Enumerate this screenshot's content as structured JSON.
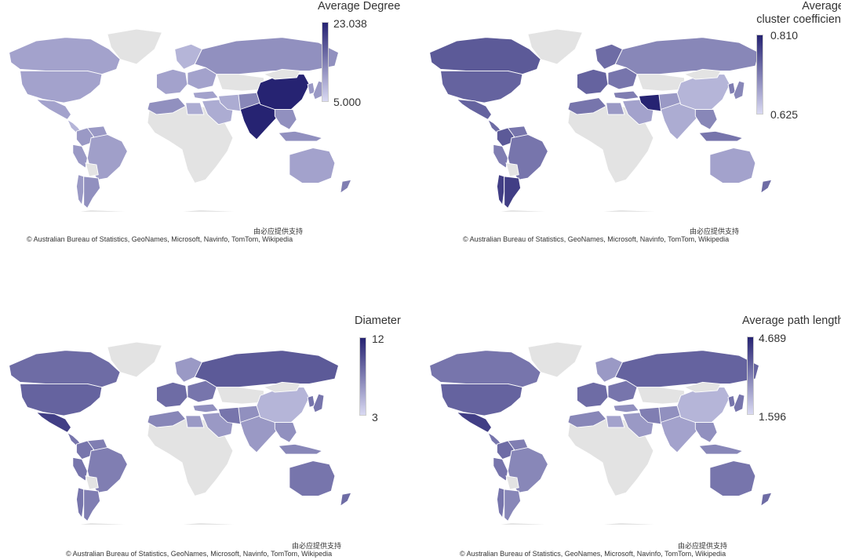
{
  "colors": {
    "low": "#d9d9f2",
    "high": "#262372",
    "nodata": "#e3e3e3",
    "border": "#ffffff"
  },
  "panels": [
    {
      "title": "Average Degree",
      "max_label": "23.038",
      "min_label": "5.000",
      "credit_cn": "由必应提供支持",
      "credit": "© Australian Bureau of Statistics, GeoNames, Microsoft, Navinfo, TomTom, Wikipedia",
      "levels": {
        "canada": 0.3,
        "usa": 0.3,
        "mexico": 0.3,
        "central_america": 0.2,
        "colombia": 0.35,
        "venezuela": 0.35,
        "peru": 0.35,
        "brazil": 0.32,
        "bolivia": 0.0,
        "chile": 0.35,
        "argentina": 0.4,
        "western_europe": 0.3,
        "scandinavia": 0.2,
        "eastern_europe": 0.3,
        "russia": 0.4,
        "north_africa": 0.4,
        "egypt": 0.25,
        "turkey": 0.3,
        "middle_east": 0.25,
        "iran": 0.25,
        "pakistan": 0.45,
        "india": 1.0,
        "china": 1.0,
        "japan": 0.35,
        "korea": 0.35,
        "southeast_asia": 0.4,
        "indonesia": 0.4,
        "australia": 0.3,
        "new_zealand": 0.5
      }
    },
    {
      "title": "Average\ncluster coefficient",
      "max_label": "0.810",
      "min_label": "0.625",
      "credit_cn": "由必应提供支持",
      "credit": "© Australian Bureau of Statistics, GeoNames, Microsoft, Navinfo, TomTom, Wikipedia",
      "levels": {
        "canada": 0.7,
        "usa": 0.65,
        "mexico": 0.65,
        "central_america": 0.6,
        "colombia": 0.7,
        "venezuela": 0.55,
        "peru": 0.5,
        "brazil": 0.55,
        "bolivia": 0.0,
        "chile": 0.85,
        "argentina": 0.85,
        "western_europe": 0.65,
        "scandinavia": 0.6,
        "eastern_europe": 0.55,
        "russia": 0.45,
        "north_africa": 0.55,
        "egypt": 0.35,
        "turkey": 0.5,
        "middle_east": 0.3,
        "iran": 1.0,
        "pakistan": 0.35,
        "india": 0.25,
        "china": 0.2,
        "japan": 0.45,
        "korea": 0.5,
        "southeast_asia": 0.45,
        "indonesia": 0.55,
        "australia": 0.3,
        "new_zealand": 0.6
      }
    },
    {
      "title": "Diameter",
      "max_label": "12",
      "min_label": "3",
      "credit_cn": "由必应提供支持",
      "credit": "© Australian Bureau of Statistics, GeoNames, Microsoft, Navinfo, TomTom, Wikipedia",
      "levels": {
        "canada": 0.6,
        "usa": 0.65,
        "mexico": 0.85,
        "central_america": 0.55,
        "colombia": 0.55,
        "venezuela": 0.5,
        "peru": 0.55,
        "brazil": 0.5,
        "bolivia": 0.0,
        "chile": 0.55,
        "argentina": 0.5,
        "western_europe": 0.6,
        "scandinavia": 0.35,
        "eastern_europe": 0.55,
        "russia": 0.7,
        "north_africa": 0.45,
        "egypt": 0.35,
        "turkey": 0.4,
        "middle_east": 0.35,
        "iran": 0.55,
        "pakistan": 0.4,
        "india": 0.35,
        "china": 0.2,
        "japan": 0.55,
        "korea": 0.55,
        "southeast_asia": 0.4,
        "indonesia": 0.45,
        "australia": 0.55,
        "new_zealand": 0.6
      }
    },
    {
      "title": "Average path length",
      "max_label": "4.689",
      "min_label": "1.596",
      "credit_cn": "由必应提供支持",
      "credit": "© Australian Bureau of Statistics, GeoNames, Microsoft, Navinfo, TomTom, Wikipedia",
      "levels": {
        "canada": 0.55,
        "usa": 0.65,
        "mexico": 0.85,
        "central_america": 0.55,
        "colombia": 0.6,
        "venezuela": 0.5,
        "peru": 0.55,
        "brazil": 0.45,
        "bolivia": 0.0,
        "chile": 0.55,
        "argentina": 0.45,
        "western_europe": 0.6,
        "scandinavia": 0.35,
        "eastern_europe": 0.55,
        "russia": 0.65,
        "north_africa": 0.45,
        "egypt": 0.3,
        "turkey": 0.4,
        "middle_east": 0.35,
        "iran": 0.5,
        "pakistan": 0.4,
        "india": 0.3,
        "china": 0.2,
        "japan": 0.55,
        "korea": 0.55,
        "southeast_asia": 0.4,
        "indonesia": 0.45,
        "australia": 0.55,
        "new_zealand": 0.6
      }
    }
  ]
}
